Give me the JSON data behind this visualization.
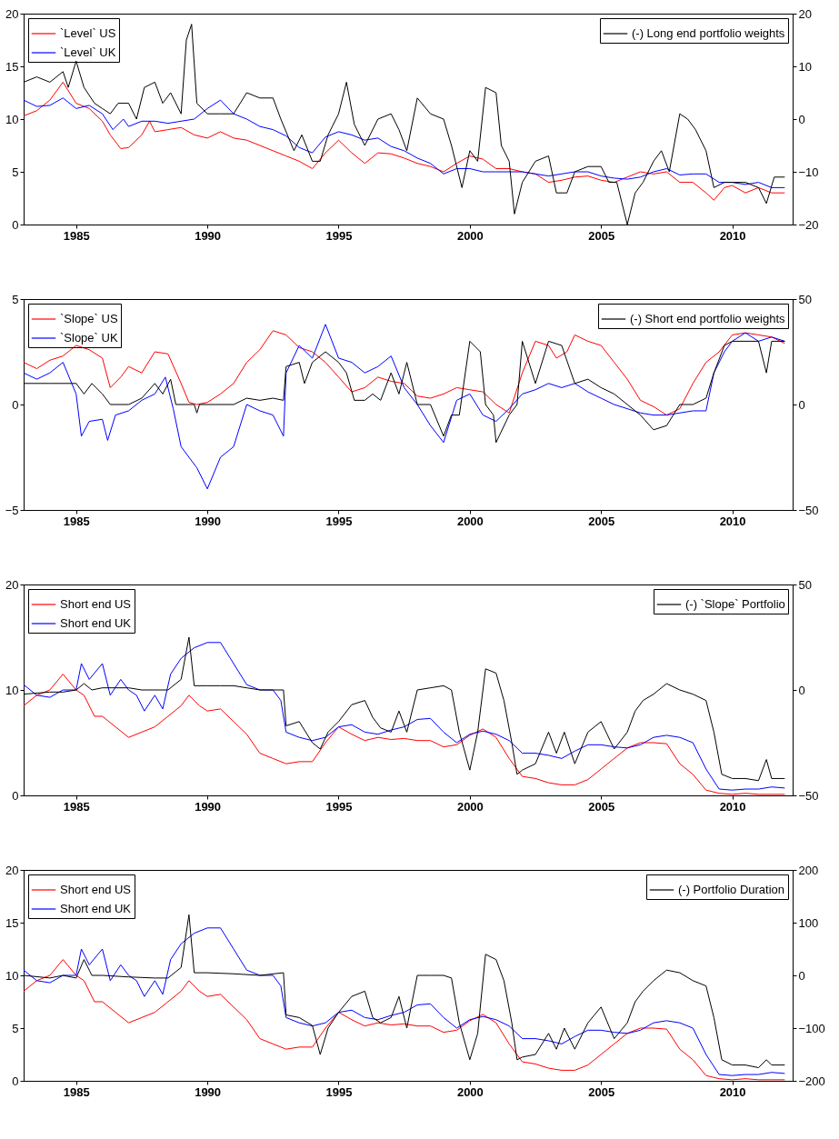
{
  "chart_data": [
    {
      "type": "line",
      "xlim": [
        1983,
        2012.3
      ],
      "xticks": [
        1985,
        1990,
        1995,
        2000,
        2005,
        2010
      ],
      "ylim": [
        0,
        20
      ],
      "yticks": [
        0,
        5,
        10,
        15,
        20
      ],
      "y2lim": [
        -20,
        20
      ],
      "y2ticks": [
        -20,
        -10,
        0,
        10,
        20
      ],
      "legend": "top left",
      "grid": false,
      "line_style": "solid",
      "series": [
        {
          "name": "`Level` US",
          "color": "#ff0000",
          "x": [
            1983,
            1983.5,
            1984,
            1984.5,
            1985,
            1985.5,
            1986,
            1986.3,
            1986.7,
            1987,
            1987.5,
            1987.8,
            1988,
            1988.5,
            1989,
            1989.5,
            1990,
            1990.5,
            1991,
            1991.5,
            1992,
            1992.5,
            1993,
            1993.5,
            1994,
            1994.5,
            1995,
            1995.5,
            1996,
            1996.5,
            1997,
            1997.5,
            1998,
            1998.5,
            1999,
            1999.5,
            2000,
            2000.5,
            2001,
            2001.5,
            2002,
            2002.5,
            2003,
            2003.5,
            2004,
            2004.5,
            2005,
            2005.5,
            2006,
            2006.5,
            2007,
            2007.5,
            2008,
            2008.5,
            2009,
            2009.3,
            2009.7,
            2010,
            2010.5,
            2011,
            2011.5,
            2012
          ],
          "values": [
            10.3,
            10.8,
            11.8,
            13.5,
            11.5,
            11,
            9.8,
            8.5,
            7.2,
            7.3,
            8.5,
            9.8,
            8.8,
            9,
            9.2,
            8.5,
            8.2,
            8.8,
            8.2,
            8.0,
            7.5,
            7.0,
            6.5,
            6.0,
            5.3,
            6.8,
            8.0,
            6.8,
            5.8,
            6.8,
            6.7,
            6.3,
            5.8,
            5.5,
            5.0,
            5.8,
            6.5,
            6.2,
            5.3,
            5.3,
            5.0,
            4.8,
            4.0,
            4.2,
            4.5,
            4.6,
            4.2,
            4.0,
            4.5,
            5.0,
            4.8,
            5.0,
            4.0,
            4.0,
            3.0,
            2.3,
            3.5,
            3.7,
            3.0,
            3.5,
            3.0,
            3.0
          ]
        },
        {
          "name": "`Level` UK",
          "color": "#0000ff",
          "x": [
            1983,
            1983.5,
            1984,
            1984.5,
            1985,
            1985.5,
            1986,
            1986.4,
            1986.8,
            1987,
            1987.5,
            1988,
            1988.5,
            1989,
            1989.5,
            1990,
            1990.5,
            1991,
            1991.5,
            1992,
            1992.5,
            1993,
            1993.5,
            1994,
            1994.5,
            1995,
            1995.5,
            1996,
            1996.5,
            1997,
            1997.5,
            1998,
            1998.5,
            1999,
            1999.5,
            2000,
            2000.5,
            2001,
            2001.5,
            2002,
            2002.5,
            2003,
            2003.5,
            2004,
            2004.5,
            2005,
            2005.5,
            2006,
            2006.5,
            2007,
            2007.5,
            2008,
            2008.5,
            2009,
            2009.5,
            2010,
            2010.5,
            2011,
            2011.5,
            2012
          ],
          "values": [
            11.8,
            11.2,
            11.3,
            12,
            11,
            11.3,
            10.5,
            9.0,
            10,
            9.3,
            9.8,
            9.8,
            9.6,
            9.8,
            10,
            11,
            11.8,
            10.5,
            10,
            9.3,
            9.0,
            8.4,
            7.3,
            6.8,
            8.3,
            8.8,
            8.5,
            8.0,
            8.2,
            7.4,
            7.0,
            6.3,
            5.8,
            4.8,
            5.3,
            5.3,
            5.0,
            5.0,
            5.0,
            5.0,
            4.8,
            4.6,
            4.8,
            5.0,
            5.0,
            4.6,
            4.4,
            4.3,
            4.5,
            5.0,
            5.3,
            4.7,
            4.8,
            4.8,
            4.0,
            4.0,
            3.8,
            4.0,
            3.5,
            3.5
          ]
        },
        {
          "name": "(-) Long end portfolio weights",
          "color": "#000000",
          "axis": "y2",
          "x": [
            1983,
            1983.5,
            1984,
            1984.5,
            1984.7,
            1985,
            1985.3,
            1985.7,
            1986,
            1986.3,
            1986.6,
            1987,
            1987.3,
            1987.6,
            1988,
            1988.3,
            1988.6,
            1989,
            1989.2,
            1989.4,
            1989.6,
            1990,
            1990.5,
            1991,
            1991.5,
            1992,
            1992.5,
            1992.8,
            1993.3,
            1993.6,
            1994,
            1994.3,
            1994.6,
            1995,
            1995.3,
            1995.6,
            1996,
            1996.5,
            1997,
            1997.3,
            1997.6,
            1998,
            1998.5,
            1999,
            1999.3,
            1999.7,
            2000,
            2000.3,
            2000.6,
            2001,
            2001.2,
            2001.5,
            2001.7,
            2002,
            2002.5,
            2003,
            2003.3,
            2003.7,
            2004,
            2004.5,
            2005,
            2005.3,
            2005.6,
            2006,
            2006.3,
            2006.6,
            2007,
            2007.3,
            2007.6,
            2008,
            2008.3,
            2008.6,
            2009,
            2009.3,
            2009.7,
            2010,
            2010.5,
            2011,
            2011.3,
            2011.6,
            2012
          ],
          "values": [
            7,
            8,
            7,
            9,
            6,
            11,
            6,
            3,
            2,
            1,
            3,
            3,
            0,
            6,
            7,
            3,
            5,
            1,
            15,
            18,
            3,
            1,
            1,
            1,
            5,
            4,
            4,
            0,
            -6,
            -3,
            -8,
            -8,
            -3,
            1,
            7,
            -1,
            -5,
            0,
            1,
            -2,
            -6,
            4,
            1,
            0,
            -5,
            -13,
            -6,
            -8,
            6,
            5,
            -5,
            -8,
            -18,
            -12,
            -8,
            -7,
            -14,
            -14,
            -10,
            -9,
            -9,
            -12,
            -12,
            -20,
            -14,
            -12,
            -8,
            -6,
            -10,
            1,
            0,
            -2,
            -6,
            -13,
            -12,
            -12,
            -12,
            -13,
            -16,
            -11,
            -11
          ]
        }
      ]
    },
    {
      "type": "line",
      "xlim": [
        1983,
        2012.3
      ],
      "xticks": [
        1985,
        1990,
        1995,
        2000,
        2005,
        2010
      ],
      "ylim": [
        -5,
        5
      ],
      "yticks": [
        -5,
        0,
        5
      ],
      "y2lim": [
        -50,
        50
      ],
      "y2ticks": [
        -50,
        0,
        50
      ],
      "legend": "top left",
      "grid": false,
      "line_style": "solid",
      "series": [
        {
          "name": "`Slope` US",
          "color": "#ff0000",
          "x": [
            1983,
            1983.5,
            1984,
            1984.5,
            1985,
            1985.5,
            1986,
            1986.3,
            1986.7,
            1987,
            1987.5,
            1988,
            1988.5,
            1989,
            1989.3,
            1989.6,
            1990,
            1990.5,
            1991,
            1991.5,
            1992,
            1992.5,
            1993,
            1993.5,
            1994,
            1994.5,
            1995,
            1995.5,
            1996,
            1996.5,
            1997,
            1997.5,
            1998,
            1998.5,
            1999,
            1999.5,
            2000,
            2000.5,
            2001,
            2001.5,
            2002,
            2002.5,
            2003,
            2003.3,
            2003.7,
            2004,
            2004.5,
            2005,
            2005.5,
            2006,
            2006.5,
            2007,
            2007.5,
            2008,
            2008.5,
            2009,
            2009.5,
            2010,
            2010.5,
            2011,
            2011.5,
            2012
          ],
          "values": [
            2.0,
            1.7,
            2.1,
            2.3,
            2.8,
            2.6,
            2.2,
            0.8,
            1.3,
            1.8,
            1.5,
            2.5,
            2.4,
            1.0,
            0.1,
            0,
            0.1,
            0.5,
            1.0,
            2.0,
            2.6,
            3.5,
            3.3,
            2.7,
            2.5,
            2.0,
            1.3,
            0.6,
            0.8,
            1.3,
            1.1,
            1.0,
            0.4,
            0.3,
            0.5,
            0.8,
            0.7,
            0.6,
            0.0,
            -0.4,
            1.5,
            3.0,
            2.8,
            2.2,
            2.5,
            3.3,
            3.0,
            2.8,
            2.0,
            1.2,
            0.2,
            -0.1,
            -0.5,
            -0.2,
            1.0,
            2.0,
            2.5,
            3.3,
            3.4,
            3.3,
            3.2,
            2.9
          ]
        },
        {
          "name": "`Slope` UK",
          "color": "#0000ff",
          "x": [
            1983,
            1983.5,
            1984,
            1984.5,
            1985,
            1985.2,
            1985.5,
            1986,
            1986.2,
            1986.5,
            1987,
            1987.5,
            1988,
            1988.4,
            1988.7,
            1989,
            1989.3,
            1989.6,
            1990,
            1990.5,
            1991,
            1991.5,
            1992,
            1992.5,
            1992.9,
            1993,
            1993.5,
            1994,
            1994.5,
            1995,
            1995.5,
            1996,
            1996.5,
            1997,
            1997.5,
            1998,
            1998.5,
            1999,
            1999.5,
            2000,
            2000.5,
            2001,
            2001.5,
            2002,
            2002.5,
            2003,
            2003.5,
            2004,
            2004.5,
            2005,
            2005.5,
            2006,
            2006.5,
            2007,
            2007.5,
            2008,
            2008.5,
            2009,
            2009.3,
            2009.7,
            2010,
            2010.5,
            2011,
            2011.5,
            2012
          ],
          "values": [
            1.5,
            1.2,
            1.5,
            2.0,
            0.5,
            -1.5,
            -0.8,
            -0.7,
            -1.7,
            -0.5,
            -0.3,
            0.2,
            0.5,
            1.3,
            -0.2,
            -2.0,
            -2.5,
            -3.0,
            -4.0,
            -2.5,
            -2.0,
            0.0,
            -0.3,
            -0.5,
            -1.5,
            1.5,
            2.8,
            2.2,
            3.8,
            2.2,
            2.0,
            1.5,
            1.8,
            2.3,
            0.8,
            0.0,
            -1.0,
            -1.8,
            0.2,
            0.5,
            -0.5,
            -0.8,
            -0.2,
            0.5,
            0.7,
            1.0,
            0.8,
            1.0,
            0.6,
            0.3,
            0.0,
            -0.2,
            -0.4,
            -0.5,
            -0.5,
            -0.4,
            -0.3,
            -0.3,
            1.5,
            2.5,
            3.0,
            3.4,
            3.0,
            3.2,
            3.0
          ]
        },
        {
          "name": "(-) Short end portfolio weights",
          "color": "#000000",
          "axis": "y2",
          "x": [
            1983,
            1984,
            1985,
            1985.3,
            1985.6,
            1986,
            1986.3,
            1987,
            1987.5,
            1988,
            1988.3,
            1988.6,
            1988.8,
            1989.5,
            1989.6,
            1989.7,
            1991,
            1991.5,
            1992,
            1992.5,
            1992.9,
            1993,
            1993.5,
            1993.7,
            1994,
            1994.5,
            1995,
            1995.3,
            1995.6,
            1996,
            1996.3,
            1996.6,
            1997,
            1997.3,
            1997.6,
            1998,
            1998.5,
            1999,
            1999.3,
            1999.6,
            2000,
            2000.4,
            2000.6,
            2000.9,
            2001,
            2001.5,
            2001.8,
            2002,
            2002.5,
            2003,
            2003.5,
            2004,
            2004.5,
            2005,
            2005.5,
            2006,
            2006.5,
            2007,
            2007.5,
            2008,
            2008.5,
            2009,
            2009.3,
            2009.7,
            2010,
            2010.5,
            2011,
            2011.3,
            2011.5,
            2012
          ],
          "values": [
            10,
            10,
            10,
            5,
            10,
            5,
            0,
            0,
            3,
            10,
            5,
            12,
            0,
            0,
            -4,
            0,
            0,
            3,
            2,
            3,
            2,
            18,
            20,
            10,
            20,
            25,
            20,
            15,
            2,
            2,
            5,
            2,
            15,
            5,
            20,
            0,
            0,
            -15,
            -5,
            -5,
            30,
            25,
            0,
            -5,
            -18,
            -5,
            0,
            30,
            10,
            30,
            28,
            10,
            12,
            8,
            5,
            0,
            -5,
            -12,
            -10,
            0,
            0,
            3,
            15,
            28,
            30,
            30,
            30,
            15,
            30,
            30
          ]
        }
      ]
    },
    {
      "type": "line",
      "xlim": [
        1983,
        2012.3
      ],
      "xticks": [
        1985,
        1990,
        1995,
        2000,
        2005,
        2010
      ],
      "ylim": [
        0,
        20
      ],
      "yticks": [
        0,
        10,
        20
      ],
      "y2lim": [
        -50,
        50
      ],
      "y2ticks": [
        -50,
        0,
        50
      ],
      "legend": "top left",
      "grid": false,
      "line_style": "solid",
      "series": [
        {
          "name": "Short end US",
          "color": "#ff0000",
          "x": [
            1983,
            1983.5,
            1984,
            1984.5,
            1985,
            1985.3,
            1985.7,
            1986,
            1986.5,
            1987,
            1987.5,
            1988,
            1988.5,
            1989,
            1989.3,
            1989.7,
            1990,
            1990.5,
            1991,
            1991.5,
            1992,
            1992.5,
            1993,
            1993.5,
            1994,
            1994.5,
            1995,
            1995.5,
            1996,
            1996.5,
            1997,
            1997.5,
            1998,
            1998.5,
            1999,
            1999.5,
            2000,
            2000.5,
            2001,
            2001.5,
            2002,
            2002.5,
            2003,
            2003.5,
            2004,
            2004.5,
            2005,
            2005.5,
            2006,
            2006.5,
            2007,
            2007.5,
            2008,
            2008.5,
            2009,
            2009.5,
            2010,
            2010.5,
            2011,
            2011.5,
            2012
          ],
          "values": [
            8.5,
            9.5,
            10,
            11.5,
            10,
            9.5,
            7.5,
            7.5,
            6.5,
            5.5,
            6,
            6.5,
            7.5,
            8.5,
            9.5,
            8.5,
            8,
            8.2,
            7,
            5.8,
            4,
            3.5,
            3,
            3.2,
            3.2,
            5,
            6.5,
            5.8,
            5.2,
            5.5,
            5.3,
            5.4,
            5.2,
            5.2,
            4.6,
            4.8,
            5.7,
            6.3,
            5.5,
            3.5,
            1.8,
            1.6,
            1.2,
            1.0,
            1.0,
            1.5,
            2.5,
            3.5,
            4.5,
            5.0,
            5.0,
            4.9,
            3.0,
            2.0,
            0.5,
            0.2,
            0.1,
            0.2,
            0.1,
            0.1,
            0.1
          ]
        },
        {
          "name": "Short end UK",
          "color": "#0000ff",
          "x": [
            1983,
            1983.5,
            1984,
            1984.5,
            1985,
            1985.2,
            1985.5,
            1986,
            1986.3,
            1986.7,
            1987,
            1987.3,
            1987.6,
            1988,
            1988.3,
            1988.6,
            1989,
            1989.5,
            1990,
            1990.5,
            1991,
            1991.5,
            1992,
            1992.5,
            1992.8,
            1993,
            1993.5,
            1994,
            1994.5,
            1995,
            1995.5,
            1996,
            1996.5,
            1997,
            1997.5,
            1998,
            1998.5,
            1999,
            1999.5,
            2000,
            2000.5,
            2001,
            2001.5,
            2002,
            2002.5,
            2003,
            2003.5,
            2004,
            2004.5,
            2005,
            2005.5,
            2006,
            2006.5,
            2007,
            2007.5,
            2008,
            2008.5,
            2009,
            2009.5,
            2010,
            2010.5,
            2011,
            2011.5,
            2012
          ],
          "values": [
            10.5,
            9.5,
            9.3,
            10,
            10,
            12.5,
            11,
            12.5,
            9.5,
            11,
            10,
            9.5,
            8,
            9.5,
            8.2,
            11.5,
            13,
            14,
            14.5,
            14.5,
            12.5,
            10.5,
            10,
            10,
            9,
            6,
            5.5,
            5.2,
            5.5,
            6.5,
            6.7,
            6.0,
            5.8,
            6.2,
            6.5,
            7.2,
            7.3,
            6.0,
            5.0,
            5.8,
            6.1,
            5.8,
            5.2,
            4.0,
            4.0,
            3.8,
            3.5,
            4.2,
            4.8,
            4.8,
            4.6,
            4.5,
            4.8,
            5.5,
            5.7,
            5.5,
            5.0,
            2.5,
            0.6,
            0.5,
            0.6,
            0.6,
            0.8,
            0.7
          ]
        },
        {
          "name": "(-) `Slope` Portfolio",
          "color": "#000000",
          "axis": "y2",
          "x": [
            1983,
            1984,
            1984.5,
            1985,
            1985.3,
            1985.6,
            1986,
            1986.5,
            1987,
            1987.5,
            1988,
            1988.5,
            1989,
            1989.3,
            1989.5,
            1990,
            1990.5,
            1991,
            1991.5,
            1992,
            1992.9,
            1993,
            1993.5,
            1994,
            1994.3,
            1994.6,
            1995,
            1995.5,
            1996,
            1996.3,
            1996.6,
            1997,
            1997.3,
            1997.6,
            1998,
            1998.5,
            1999,
            1999.3,
            1999.6,
            2000,
            2000.3,
            2000.6,
            2001,
            2001.3,
            2001.6,
            2001.8,
            2002,
            2002.5,
            2003,
            2003.3,
            2003.6,
            2004,
            2004.5,
            2005,
            2005.5,
            2006,
            2006.3,
            2006.6,
            2007,
            2007.5,
            2008,
            2008.5,
            2009,
            2009.3,
            2009.6,
            2010,
            2010.5,
            2011,
            2011.3,
            2011.5,
            2012
          ],
          "values": [
            -2,
            -1,
            -1,
            0,
            3,
            0,
            1,
            1,
            1,
            0,
            0,
            0,
            5,
            25,
            2,
            2,
            2,
            2,
            1,
            0,
            0,
            -17,
            -15,
            -25,
            -28,
            -20,
            -15,
            -7,
            -5,
            -13,
            -18,
            -20,
            -10,
            -20,
            0,
            1,
            2,
            0,
            -20,
            -38,
            -20,
            10,
            8,
            -5,
            -25,
            -40,
            -38,
            -35,
            -20,
            -30,
            -20,
            -35,
            -20,
            -15,
            -28,
            -20,
            -10,
            -5,
            -2,
            3,
            0,
            -2,
            -5,
            -20,
            -40,
            -42,
            -42,
            -43,
            -33,
            -42,
            -42
          ]
        }
      ]
    },
    {
      "type": "line",
      "xlim": [
        1983,
        2012.3
      ],
      "xticks": [
        1985,
        1990,
        1995,
        2000,
        2005,
        2010
      ],
      "ylim": [
        0,
        20
      ],
      "yticks": [
        0,
        5,
        10,
        15,
        20
      ],
      "y2lim": [
        -200,
        200
      ],
      "y2ticks": [
        -200,
        -100,
        0,
        100,
        200
      ],
      "legend": "top left",
      "grid": false,
      "line_style": "solid",
      "series": [
        {
          "name": "Short end US",
          "color": "#ff0000",
          "x": [
            1983,
            1983.5,
            1984,
            1984.5,
            1985,
            1985.3,
            1985.7,
            1986,
            1986.5,
            1987,
            1987.5,
            1988,
            1988.5,
            1989,
            1989.3,
            1989.7,
            1990,
            1990.5,
            1991,
            1991.5,
            1992,
            1992.5,
            1993,
            1993.5,
            1994,
            1994.5,
            1995,
            1995.5,
            1996,
            1996.5,
            1997,
            1997.5,
            1998,
            1998.5,
            1999,
            1999.5,
            2000,
            2000.5,
            2001,
            2001.5,
            2002,
            2002.5,
            2003,
            2003.5,
            2004,
            2004.5,
            2005,
            2005.5,
            2006,
            2006.5,
            2007,
            2007.5,
            2008,
            2008.5,
            2009,
            2009.5,
            2010,
            2010.5,
            2011,
            2011.5,
            2012
          ],
          "values": [
            8.5,
            9.5,
            10,
            11.5,
            10,
            9.5,
            7.5,
            7.5,
            6.5,
            5.5,
            6,
            6.5,
            7.5,
            8.5,
            9.5,
            8.5,
            8,
            8.2,
            7,
            5.8,
            4,
            3.5,
            3,
            3.2,
            3.2,
            5,
            6.5,
            5.8,
            5.2,
            5.5,
            5.3,
            5.4,
            5.2,
            5.2,
            4.6,
            4.8,
            5.7,
            6.3,
            5.5,
            3.5,
            1.8,
            1.6,
            1.2,
            1.0,
            1.0,
            1.5,
            2.5,
            3.5,
            4.5,
            5.0,
            5.0,
            4.9,
            3.0,
            2.0,
            0.5,
            0.2,
            0.1,
            0.2,
            0.1,
            0.1,
            0.1
          ]
        },
        {
          "name": "Short end UK",
          "color": "#0000ff",
          "x": [
            1983,
            1983.5,
            1984,
            1984.5,
            1985,
            1985.2,
            1985.5,
            1986,
            1986.3,
            1986.7,
            1987,
            1987.3,
            1987.6,
            1988,
            1988.3,
            1988.6,
            1989,
            1989.5,
            1990,
            1990.5,
            1991,
            1991.5,
            1992,
            1992.5,
            1992.8,
            1993,
            1993.5,
            1994,
            1994.5,
            1995,
            1995.5,
            1996,
            1996.5,
            1997,
            1997.5,
            1998,
            1998.5,
            1999,
            1999.5,
            2000,
            2000.5,
            2001,
            2001.5,
            2002,
            2002.5,
            2003,
            2003.5,
            2004,
            2004.5,
            2005,
            2005.5,
            2006,
            2006.5,
            2007,
            2007.5,
            2008,
            2008.5,
            2009,
            2009.5,
            2010,
            2010.5,
            2011,
            2011.5,
            2012
          ],
          "values": [
            10.5,
            9.5,
            9.3,
            10,
            10,
            12.5,
            11,
            12.5,
            9.5,
            11,
            10,
            9.5,
            8,
            9.5,
            8.2,
            11.5,
            13,
            14,
            14.5,
            14.5,
            12.5,
            10.5,
            10,
            10,
            9,
            6,
            5.5,
            5.2,
            5.5,
            6.5,
            6.7,
            6.0,
            5.8,
            6.2,
            6.5,
            7.2,
            7.3,
            6.0,
            5.0,
            5.8,
            6.1,
            5.8,
            5.2,
            4.0,
            4.0,
            3.8,
            3.5,
            4.2,
            4.8,
            4.8,
            4.6,
            4.5,
            4.8,
            5.5,
            5.7,
            5.5,
            5.0,
            2.5,
            0.6,
            0.5,
            0.6,
            0.6,
            0.8,
            0.7
          ]
        },
        {
          "name": "(-) Portfolio Duration",
          "color": "#000000",
          "axis": "y2",
          "x": [
            1983,
            1984,
            1984.5,
            1985,
            1985.3,
            1985.6,
            1986,
            1987,
            1988,
            1988.5,
            1989,
            1989.3,
            1989.5,
            1990,
            1991,
            1992,
            1992.9,
            1993,
            1993.5,
            1994,
            1994.3,
            1994.6,
            1995,
            1995.5,
            1996,
            1996.3,
            1996.6,
            1997,
            1997.3,
            1997.6,
            1998,
            1998.5,
            1999,
            1999.3,
            1999.6,
            2000,
            2000.3,
            2000.6,
            2001,
            2001.3,
            2001.6,
            2001.8,
            2002,
            2002.5,
            2003,
            2003.3,
            2003.6,
            2004,
            2004.5,
            2005,
            2005.5,
            2006,
            2006.3,
            2006.6,
            2007,
            2007.5,
            2008,
            2008.5,
            2009,
            2009.3,
            2009.6,
            2010,
            2010.5,
            2011,
            2011.3,
            2011.5,
            2012
          ],
          "values": [
            0,
            -5,
            0,
            -5,
            30,
            0,
            0,
            -3,
            -5,
            -5,
            15,
            115,
            5,
            5,
            3,
            0,
            5,
            -75,
            -80,
            -95,
            -150,
            -100,
            -70,
            -40,
            -30,
            -80,
            -90,
            -80,
            -40,
            -100,
            0,
            0,
            0,
            -5,
            -90,
            -160,
            -110,
            40,
            30,
            -10,
            -90,
            -160,
            -155,
            -150,
            -110,
            -140,
            -100,
            -140,
            -90,
            -60,
            -120,
            -90,
            -50,
            -30,
            -10,
            10,
            5,
            -10,
            -20,
            -80,
            -160,
            -170,
            -170,
            -175,
            -160,
            -170,
            -170
          ]
        }
      ]
    }
  ]
}
